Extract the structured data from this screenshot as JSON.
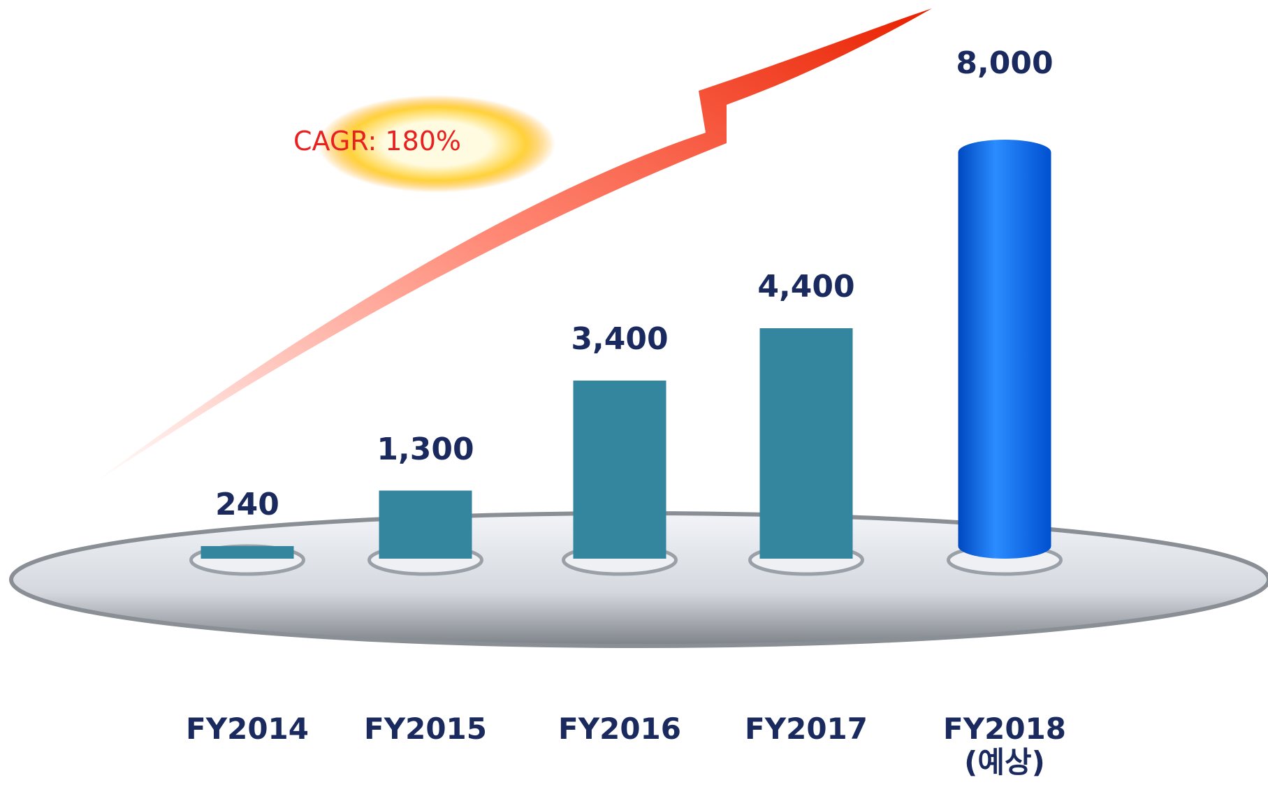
{
  "chart_data": {
    "type": "bar",
    "categories": [
      "FY2014",
      "FY2015",
      "FY2016",
      "FY2017",
      "FY2018\n(예상)"
    ],
    "values": [
      240,
      1300,
      3400,
      4400,
      8000
    ],
    "value_labels": [
      "240",
      "1,300",
      "3,400",
      "4,400",
      "8,000"
    ],
    "colors": [
      "#33869e",
      "#33869e",
      "#33869e",
      "#33869e",
      "#0a6cf5"
    ],
    "annotation": "CAGR: 180%"
  }
}
